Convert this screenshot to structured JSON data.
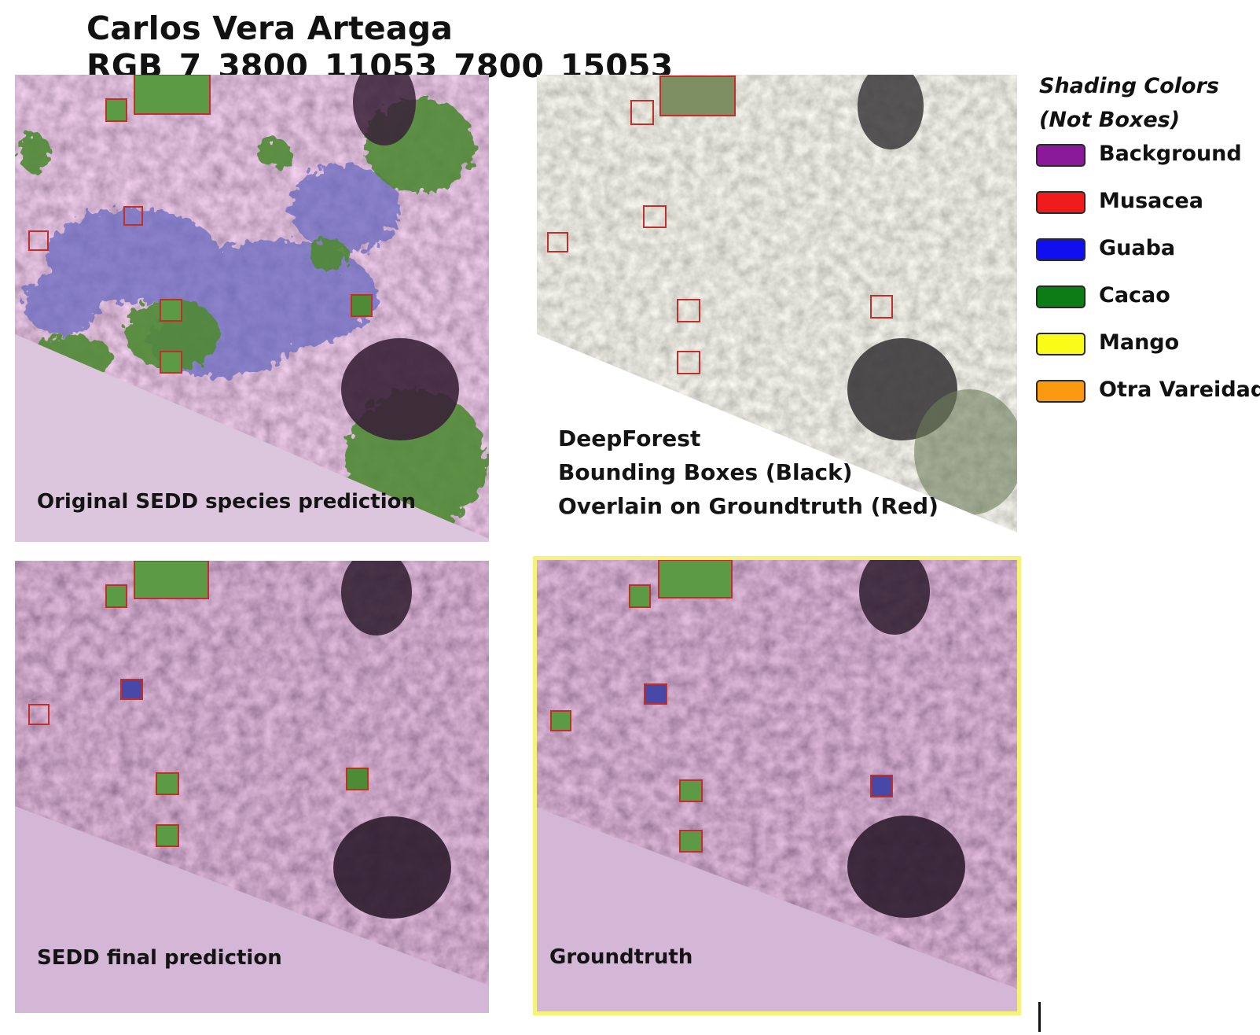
{
  "title": "Carlos Vera Arteaga RGB_7_3800_11053_7800_15053",
  "panels": {
    "original": {
      "caption": "Original SEDD species prediction"
    },
    "deepforest": {
      "caption_lines": [
        "DeepForest",
        "Bounding Boxes (Black)",
        "Overlain on Groundtruth (Red)"
      ]
    },
    "final": {
      "caption": "SEDD final prediction"
    },
    "groundtruth": {
      "caption": "Groundtruth",
      "highlight_color": "#f6f37a"
    }
  },
  "legend": {
    "title_lines": [
      "Shading Colors",
      "(Not Boxes)"
    ],
    "items": [
      {
        "label": "Background",
        "color": "#8a1a9a"
      },
      {
        "label": "Musacea",
        "color": "#ee1c1c"
      },
      {
        "label": "Guaba",
        "color": "#1010ee"
      },
      {
        "label": "Cacao",
        "color": "#0b7d14"
      },
      {
        "label": "Mango",
        "color": "#fbfb1a"
      },
      {
        "label": "Otra Vareidad",
        "color": "#fb9a10"
      }
    ]
  },
  "colors": {
    "box_red": "#c0302a",
    "mask_pink": "#dcc6de",
    "vegetation_green": "#4f8a34",
    "guaba_blue": "#5a5ab8"
  }
}
